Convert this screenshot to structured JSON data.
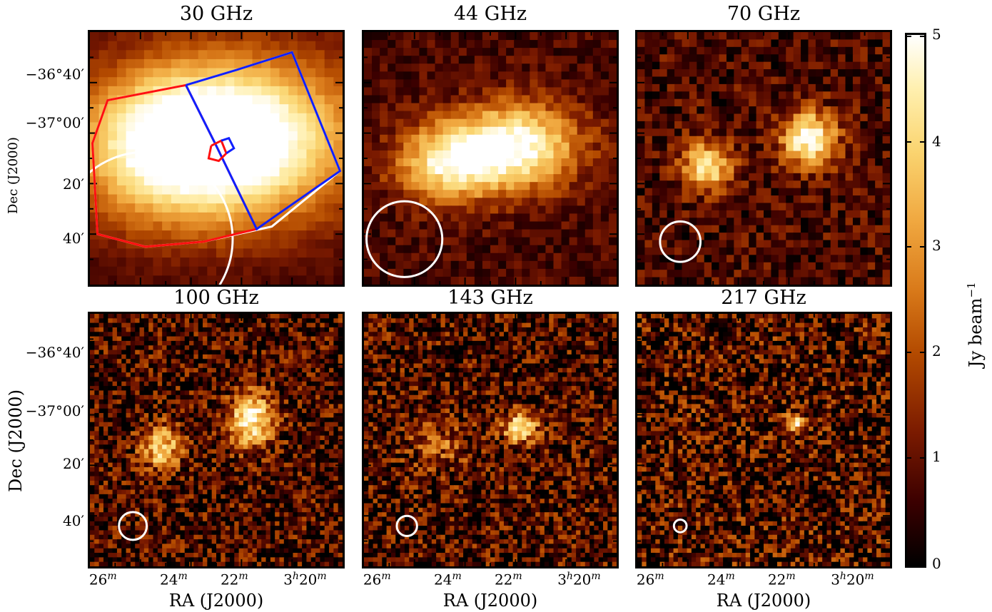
{
  "panels": [
    {
      "id": "p30",
      "title": "30 GHz",
      "beam_r": 0.345,
      "src": [
        [
          0.62,
          0.42,
          0.55,
          0.38,
          1.0
        ],
        [
          0.3,
          0.45,
          0.45,
          0.35,
          0.8
        ]
      ],
      "noise": 0.05,
      "pix": 28
    },
    {
      "id": "p44",
      "title": "44 GHz",
      "beam_r": 0.15,
      "src": [
        [
          0.6,
          0.45,
          0.3,
          0.2,
          1.0
        ],
        [
          0.33,
          0.52,
          0.25,
          0.18,
          0.8
        ]
      ],
      "noise": 0.12,
      "pix": 32
    },
    {
      "id": "p70",
      "title": "70 GHz",
      "beam_r": 0.08,
      "src": [
        [
          0.68,
          0.42,
          0.13,
          0.13,
          1.0
        ],
        [
          0.28,
          0.53,
          0.12,
          0.12,
          0.8
        ]
      ],
      "noise": 0.18,
      "pix": 34
    },
    {
      "id": "p100",
      "title": "100 GHz",
      "beam_r": 0.055,
      "src": [
        [
          0.64,
          0.42,
          0.11,
          0.13,
          0.9
        ],
        [
          0.28,
          0.53,
          0.1,
          0.11,
          0.7
        ]
      ],
      "noise": 0.28,
      "pix": 56
    },
    {
      "id": "p143",
      "title": "143 GHz",
      "beam_r": 0.04,
      "src": [
        [
          0.62,
          0.45,
          0.08,
          0.07,
          0.9
        ],
        [
          0.3,
          0.52,
          0.15,
          0.12,
          0.3
        ]
      ],
      "noise": 0.3,
      "pix": 56
    },
    {
      "id": "p217",
      "title": "217 GHz",
      "beam_r": 0.025,
      "src": [
        [
          0.62,
          0.44,
          0.05,
          0.05,
          0.8
        ]
      ],
      "noise": 0.35,
      "pix": 56
    }
  ],
  "axes": {
    "ylabel": "Dec (J2000)",
    "xlabel": "RA (J2000)",
    "yticks": [
      "−36°40′",
      "−37°00′",
      "20′",
      "40′"
    ],
    "xticks": [
      "26",
      "24",
      "22",
      "3",
      "20"
    ],
    "xtick_sup": [
      "m",
      "m",
      "m",
      "h",
      "m"
    ]
  },
  "colorbar": {
    "label": "Jy beam",
    "label_sup": "−1",
    "ticks": [
      "5",
      "4",
      "3",
      "2",
      "1",
      "0"
    ],
    "range": [
      0,
      5
    ],
    "colormap": [
      "#000000",
      "#3b0000",
      "#7a1a00",
      "#b34a00",
      "#d97a1a",
      "#f0a840",
      "#fad470",
      "#fff0b0",
      "#ffffff"
    ]
  }
}
